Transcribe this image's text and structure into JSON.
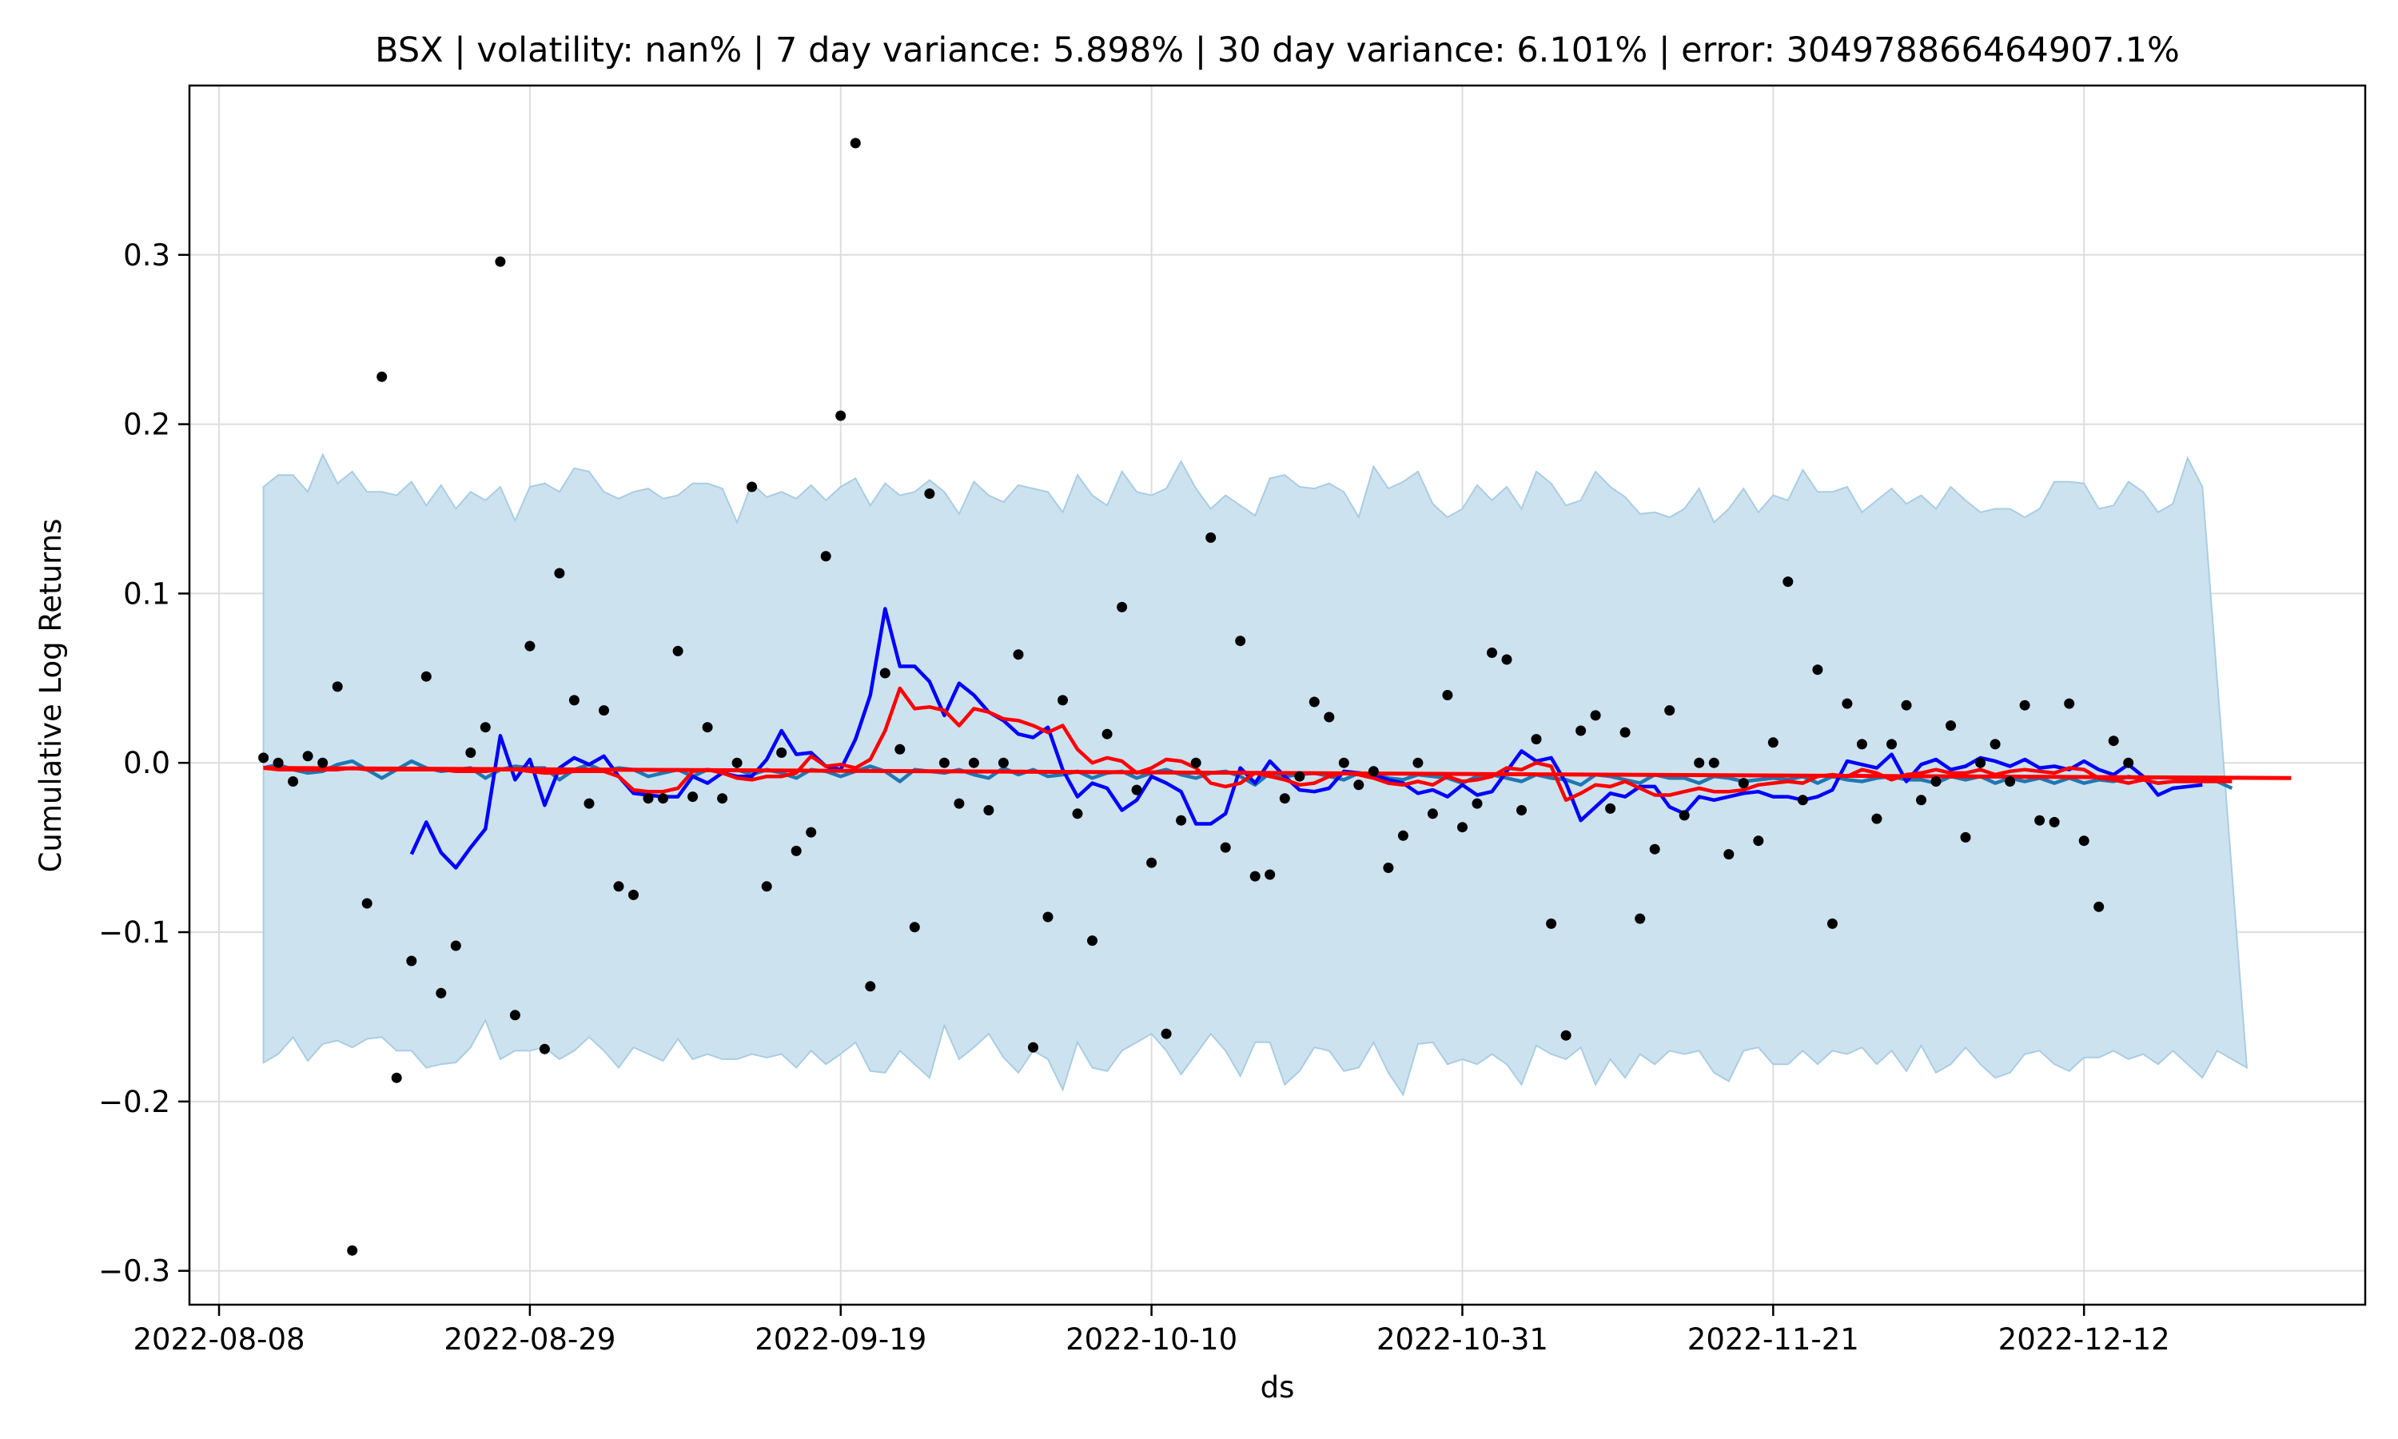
{
  "chart_data": {
    "type": "line",
    "title": "BSX | volatility: nan% | 7 day variance: 5.898% | 30 day variance: 6.101% | error: 304978866464907.1%",
    "xlabel": "ds",
    "ylabel": "Cumulative Log Returns",
    "x_start": "2022-08-11",
    "x_end": "2022-12-26",
    "xlim": [
      "2022-08-06",
      "2022-12-31"
    ],
    "ylim": [
      -0.32,
      0.4
    ],
    "grid": true,
    "x_ticks": [
      "2022-08-08",
      "2022-08-29",
      "2022-09-19",
      "2022-10-10",
      "2022-10-31",
      "2022-11-21",
      "2022-12-12"
    ],
    "y_ticks": [
      {
        "value": 0.3,
        "label": "0.3"
      },
      {
        "value": 0.2,
        "label": "0.2"
      },
      {
        "value": 0.1,
        "label": "0.1"
      },
      {
        "value": 0.0,
        "label": "0.0"
      },
      {
        "value": -0.1,
        "label": "−0.1"
      },
      {
        "value": -0.2,
        "label": "−0.2"
      },
      {
        "value": -0.3,
        "label": "−0.3"
      }
    ],
    "colors": {
      "band_fill": "#cde2ef",
      "band_edge": "#a9cde2",
      "forecast": "#1f77b4",
      "ma_short": "#0000ff",
      "ma_long": "#ff0000",
      "actual": "#000000",
      "grid": "#dddddd"
    },
    "band_upper": [
      0.163,
      0.17,
      0.17,
      0.16,
      0.182,
      0.165,
      0.172,
      0.16,
      0.16,
      0.158,
      0.166,
      0.152,
      0.164,
      0.15,
      0.16,
      0.155,
      0.163,
      0.143,
      0.163,
      0.165,
      0.16,
      0.174,
      0.172,
      0.16,
      0.156,
      0.16,
      0.162,
      0.156,
      0.158,
      0.165,
      0.165,
      0.162,
      0.142,
      0.165,
      0.157,
      0.16,
      0.156,
      0.164,
      0.155,
      0.163,
      0.168,
      0.152,
      0.165,
      0.158,
      0.16,
      0.167,
      0.16,
      0.147,
      0.166,
      0.158,
      0.154,
      0.164,
      0.162,
      0.16,
      0.148,
      0.17,
      0.158,
      0.152,
      0.172,
      0.16,
      0.158,
      0.162,
      0.178,
      0.162,
      0.15,
      0.158,
      0.152,
      0.146,
      0.168,
      0.17,
      0.163,
      0.162,
      0.165,
      0.16,
      0.145,
      0.175,
      0.162,
      0.166,
      0.172,
      0.153,
      0.145,
      0.15,
      0.164,
      0.155,
      0.163,
      0.15,
      0.172,
      0.165,
      0.152,
      0.155,
      0.172,
      0.163,
      0.157,
      0.147,
      0.148,
      0.145,
      0.15,
      0.162,
      0.142,
      0.15,
      0.162,
      0.148,
      0.158,
      0.155,
      0.173,
      0.16,
      0.16,
      0.163,
      0.148,
      0.155,
      0.162,
      0.153,
      0.158,
      0.15,
      0.163,
      0.155,
      0.148,
      0.15,
      0.15,
      0.145,
      0.15,
      0.166,
      0.166,
      0.165,
      0.15,
      0.152,
      0.166,
      0.16,
      0.148,
      0.153,
      0.18,
      0.163
    ],
    "band_lower": [
      -0.177,
      -0.172,
      -0.162,
      -0.176,
      -0.166,
      -0.164,
      -0.168,
      -0.163,
      -0.162,
      -0.17,
      -0.17,
      -0.18,
      -0.178,
      -0.177,
      -0.168,
      -0.152,
      -0.175,
      -0.17,
      -0.17,
      -0.168,
      -0.175,
      -0.17,
      -0.162,
      -0.17,
      -0.18,
      -0.168,
      -0.172,
      -0.176,
      -0.163,
      -0.175,
      -0.172,
      -0.175,
      -0.175,
      -0.172,
      -0.174,
      -0.172,
      -0.18,
      -0.17,
      -0.178,
      -0.172,
      -0.165,
      -0.182,
      -0.183,
      -0.17,
      -0.178,
      -0.186,
      -0.155,
      -0.175,
      -0.168,
      -0.16,
      -0.174,
      -0.183,
      -0.17,
      -0.175,
      -0.193,
      -0.165,
      -0.18,
      -0.182,
      -0.17,
      -0.165,
      -0.16,
      -0.17,
      -0.184,
      -0.172,
      -0.16,
      -0.17,
      -0.185,
      -0.165,
      -0.165,
      -0.19,
      -0.182,
      -0.168,
      -0.17,
      -0.182,
      -0.18,
      -0.165,
      -0.183,
      -0.196,
      -0.166,
      -0.165,
      -0.178,
      -0.175,
      -0.178,
      -0.172,
      -0.178,
      -0.19,
      -0.167,
      -0.172,
      -0.175,
      -0.168,
      -0.19,
      -0.175,
      -0.186,
      -0.172,
      -0.178,
      -0.17,
      -0.172,
      -0.17,
      -0.183,
      -0.188,
      -0.17,
      -0.168,
      -0.178,
      -0.178,
      -0.17,
      -0.178,
      -0.17,
      -0.172,
      -0.168,
      -0.178,
      -0.17,
      -0.182,
      -0.167,
      -0.183,
      -0.178,
      -0.168,
      -0.178,
      -0.186,
      -0.183,
      -0.172,
      -0.17,
      -0.178,
      -0.182,
      -0.174,
      -0.174,
      -0.17,
      -0.175,
      -0.172,
      -0.178,
      -0.17,
      -0.178,
      -0.186,
      -0.17,
      -0.175,
      -0.18
    ],
    "forecast": [
      -0.003,
      -0.001,
      -0.004,
      -0.006,
      -0.005,
      -0.001,
      0.001,
      -0.004,
      -0.009,
      -0.004,
      0.001,
      -0.003,
      -0.005,
      -0.004,
      -0.003,
      -0.009,
      -0.004,
      -0.002,
      -0.003,
      -0.003,
      -0.01,
      -0.004,
      -0.001,
      -0.005,
      -0.003,
      -0.004,
      -0.008,
      -0.006,
      -0.004,
      -0.008,
      -0.004,
      -0.005,
      -0.004,
      -0.007,
      -0.004,
      -0.006,
      -0.009,
      -0.004,
      -0.005,
      -0.008,
      -0.005,
      -0.002,
      -0.005,
      -0.011,
      -0.004,
      -0.005,
      -0.006,
      -0.004,
      -0.007,
      -0.009,
      -0.003,
      -0.007,
      -0.004,
      -0.008,
      -0.007,
      -0.005,
      -0.009,
      -0.006,
      -0.005,
      -0.009,
      -0.006,
      -0.004,
      -0.007,
      -0.009,
      -0.006,
      -0.005,
      -0.008,
      -0.013,
      -0.006,
      -0.008,
      -0.007,
      -0.006,
      -0.008,
      -0.01,
      -0.006,
      -0.007,
      -0.009,
      -0.01,
      -0.007,
      -0.008,
      -0.009,
      -0.012,
      -0.008,
      -0.007,
      -0.009,
      -0.011,
      -0.007,
      -0.009,
      -0.01,
      -0.013,
      -0.007,
      -0.008,
      -0.01,
      -0.012,
      -0.007,
      -0.009,
      -0.009,
      -0.012,
      -0.008,
      -0.009,
      -0.011,
      -0.01,
      -0.009,
      -0.01,
      -0.008,
      -0.012,
      -0.008,
      -0.01,
      -0.011,
      -0.009,
      -0.008,
      -0.01,
      -0.01,
      -0.012,
      -0.008,
      -0.01,
      -0.008,
      -0.012,
      -0.009,
      -0.011,
      -0.009,
      -0.012,
      -0.009,
      -0.012,
      -0.01,
      -0.011,
      -0.008,
      -0.01,
      -0.012,
      -0.011,
      -0.01,
      -0.009,
      -0.011,
      -0.015
    ],
    "ma_short": [
      null,
      null,
      null,
      null,
      null,
      null,
      null,
      null,
      null,
      null,
      -0.054,
      -0.035,
      -0.053,
      -0.062,
      -0.05,
      -0.039,
      0.016,
      -0.01,
      0.002,
      -0.025,
      -0.003,
      0.003,
      -0.001,
      0.004,
      -0.008,
      -0.018,
      -0.019,
      -0.02,
      -0.02,
      -0.008,
      -0.012,
      -0.006,
      -0.008,
      -0.008,
      0.002,
      0.019,
      0.005,
      0.006,
      -0.002,
      -0.004,
      0.014,
      0.04,
      0.091,
      0.057,
      0.057,
      0.048,
      0.028,
      0.047,
      0.04,
      0.03,
      0.025,
      0.017,
      0.015,
      0.021,
      -0.004,
      -0.02,
      -0.012,
      -0.015,
      -0.028,
      -0.022,
      -0.008,
      -0.012,
      -0.017,
      -0.036,
      -0.036,
      -0.03,
      -0.003,
      -0.012,
      0.001,
      -0.008,
      -0.016,
      -0.017,
      -0.015,
      -0.005,
      -0.006,
      -0.007,
      -0.01,
      -0.012,
      -0.018,
      -0.016,
      -0.02,
      -0.013,
      -0.019,
      -0.017,
      -0.005,
      0.007,
      0.001,
      0.003,
      -0.012,
      -0.034,
      -0.026,
      -0.018,
      -0.02,
      -0.014,
      -0.014,
      -0.026,
      -0.03,
      -0.02,
      -0.022,
      -0.02,
      -0.018,
      -0.017,
      -0.02,
      -0.02,
      -0.022,
      -0.02,
      -0.016,
      0.001,
      -0.001,
      -0.003,
      0.005,
      -0.011,
      -0.001,
      0.002,
      -0.004,
      -0.002,
      0.003,
      0.001,
      -0.002,
      0.002,
      -0.003,
      -0.002,
      -0.004,
      0.001,
      -0.004,
      -0.007,
      -0.001,
      -0.008,
      -0.019,
      -0.015,
      -0.014,
      -0.013
    ],
    "ma_long": [
      -0.003,
      -0.004,
      -0.004,
      -0.004,
      -0.004,
      -0.004,
      -0.003,
      -0.004,
      -0.004,
      -0.004,
      -0.004,
      -0.004,
      -0.004,
      -0.005,
      -0.005,
      -0.005,
      -0.004,
      -0.004,
      -0.005,
      -0.006,
      -0.006,
      -0.005,
      -0.005,
      -0.005,
      -0.008,
      -0.016,
      -0.017,
      -0.017,
      -0.015,
      -0.005,
      -0.004,
      -0.006,
      -0.009,
      -0.01,
      -0.008,
      -0.008,
      -0.006,
      0.004,
      -0.002,
      -0.001,
      -0.003,
      0.002,
      0.019,
      0.044,
      0.032,
      0.033,
      0.031,
      0.022,
      0.032,
      0.03,
      0.026,
      0.025,
      0.022,
      0.018,
      0.022,
      0.008,
      0.0,
      0.003,
      0.001,
      -0.006,
      -0.003,
      0.002,
      0.001,
      -0.003,
      -0.012,
      -0.014,
      -0.012,
      -0.006,
      -0.008,
      -0.01,
      -0.013,
      -0.012,
      -0.008,
      -0.006,
      -0.007,
      -0.009,
      -0.012,
      -0.013,
      -0.011,
      -0.013,
      -0.008,
      -0.011,
      -0.01,
      -0.008,
      -0.003,
      -0.004,
      0.0,
      -0.002,
      -0.022,
      -0.018,
      -0.013,
      -0.014,
      -0.011,
      -0.015,
      -0.019,
      -0.019,
      -0.017,
      -0.015,
      -0.017,
      -0.017,
      -0.016,
      -0.013,
      -0.012,
      -0.011,
      -0.012,
      -0.008,
      -0.007,
      -0.008,
      -0.004,
      -0.006,
      -0.01,
      -0.007,
      -0.006,
      -0.004,
      -0.006,
      -0.006,
      -0.004,
      -0.007,
      -0.005,
      -0.004,
      -0.005,
      -0.006,
      -0.003,
      -0.004,
      -0.009,
      -0.01,
      -0.012,
      -0.01,
      -0.012,
      -0.011,
      -0.011,
      -0.011,
      -0.011,
      -0.011
    ],
    "trend": {
      "start": -0.003,
      "end": -0.009
    },
    "actual": [
      [
        "2022-08-11",
        0.003
      ],
      [
        "2022-08-12",
        0.0
      ],
      [
        "2022-08-13",
        -0.011
      ],
      [
        "2022-08-14",
        0.004
      ],
      [
        "2022-08-15",
        0.0
      ],
      [
        "2022-08-16",
        0.045
      ],
      [
        "2022-08-17",
        -0.288
      ],
      [
        "2022-08-18",
        -0.083
      ],
      [
        "2022-08-19",
        0.228
      ],
      [
        "2022-08-20",
        -0.186
      ],
      [
        "2022-08-21",
        -0.117
      ],
      [
        "2022-08-22",
        0.051
      ],
      [
        "2022-08-23",
        -0.136
      ],
      [
        "2022-08-24",
        -0.108
      ],
      [
        "2022-08-25",
        0.006
      ],
      [
        "2022-08-26",
        0.021
      ],
      [
        "2022-08-27",
        0.296
      ],
      [
        "2022-08-28",
        -0.149
      ],
      [
        "2022-08-29",
        0.069
      ],
      [
        "2022-08-30",
        -0.169
      ],
      [
        "2022-08-31",
        0.112
      ],
      [
        "2022-09-01",
        0.037
      ],
      [
        "2022-09-02",
        -0.024
      ],
      [
        "2022-09-03",
        0.031
      ],
      [
        "2022-09-04",
        -0.073
      ],
      [
        "2022-09-05",
        -0.078
      ],
      [
        "2022-09-06",
        -0.021
      ],
      [
        "2022-09-07",
        -0.021
      ],
      [
        "2022-09-08",
        0.066
      ],
      [
        "2022-09-09",
        -0.02
      ],
      [
        "2022-09-10",
        0.021
      ],
      [
        "2022-09-11",
        -0.021
      ],
      [
        "2022-09-12",
        0.0
      ],
      [
        "2022-09-13",
        0.163
      ],
      [
        "2022-09-14",
        -0.073
      ],
      [
        "2022-09-15",
        0.006
      ],
      [
        "2022-09-16",
        -0.052
      ],
      [
        "2022-09-17",
        -0.041
      ],
      [
        "2022-09-18",
        0.122
      ],
      [
        "2022-09-19",
        0.205
      ],
      [
        "2022-09-20",
        0.366
      ],
      [
        "2022-09-21",
        -0.132
      ],
      [
        "2022-09-22",
        0.053
      ],
      [
        "2022-09-23",
        0.008
      ],
      [
        "2022-09-24",
        -0.097
      ],
      [
        "2022-09-25",
        0.159
      ],
      [
        "2022-09-26",
        0.0
      ],
      [
        "2022-09-27",
        -0.024
      ],
      [
        "2022-09-28",
        0.0
      ],
      [
        "2022-09-29",
        -0.028
      ],
      [
        "2022-09-30",
        0.0
      ],
      [
        "2022-10-01",
        0.064
      ],
      [
        "2022-10-02",
        -0.168
      ],
      [
        "2022-10-03",
        -0.091
      ],
      [
        "2022-10-04",
        0.037
      ],
      [
        "2022-10-05",
        -0.03
      ],
      [
        "2022-10-06",
        -0.105
      ],
      [
        "2022-10-07",
        0.017
      ],
      [
        "2022-10-08",
        0.092
      ],
      [
        "2022-10-09",
        -0.016
      ],
      [
        "2022-10-10",
        -0.059
      ],
      [
        "2022-10-11",
        -0.16
      ],
      [
        "2022-10-12",
        -0.034
      ],
      [
        "2022-10-13",
        0.0
      ],
      [
        "2022-10-14",
        0.133
      ],
      [
        "2022-10-15",
        -0.05
      ],
      [
        "2022-10-16",
        0.072
      ],
      [
        "2022-10-17",
        -0.067
      ],
      [
        "2022-10-18",
        -0.066
      ],
      [
        "2022-10-19",
        -0.021
      ],
      [
        "2022-10-20",
        -0.008
      ],
      [
        "2022-10-21",
        0.036
      ],
      [
        "2022-10-22",
        0.027
      ],
      [
        "2022-10-23",
        0.0
      ],
      [
        "2022-10-24",
        -0.013
      ],
      [
        "2022-10-25",
        -0.005
      ],
      [
        "2022-10-26",
        -0.062
      ],
      [
        "2022-10-27",
        -0.043
      ],
      [
        "2022-10-28",
        0.0
      ],
      [
        "2022-10-29",
        -0.03
      ],
      [
        "2022-10-30",
        0.04
      ],
      [
        "2022-10-31",
        -0.038
      ],
      [
        "2022-11-01",
        -0.024
      ],
      [
        "2022-11-02",
        0.065
      ],
      [
        "2022-11-03",
        0.061
      ],
      [
        "2022-11-04",
        -0.028
      ],
      [
        "2022-11-05",
        0.014
      ],
      [
        "2022-11-06",
        -0.095
      ],
      [
        "2022-11-07",
        -0.161
      ],
      [
        "2022-11-08",
        0.019
      ],
      [
        "2022-11-09",
        0.028
      ],
      [
        "2022-11-10",
        -0.027
      ],
      [
        "2022-11-11",
        0.018
      ],
      [
        "2022-11-12",
        -0.092
      ],
      [
        "2022-11-13",
        -0.051
      ],
      [
        "2022-11-14",
        0.031
      ],
      [
        "2022-11-15",
        -0.031
      ],
      [
        "2022-11-16",
        0.0
      ],
      [
        "2022-11-17",
        0.0
      ],
      [
        "2022-11-18",
        -0.054
      ],
      [
        "2022-11-19",
        -0.012
      ],
      [
        "2022-11-20",
        -0.046
      ],
      [
        "2022-11-21",
        0.012
      ],
      [
        "2022-11-22",
        0.107
      ],
      [
        "2022-11-23",
        -0.022
      ],
      [
        "2022-11-24",
        0.055
      ],
      [
        "2022-11-25",
        -0.095
      ],
      [
        "2022-11-26",
        0.035
      ],
      [
        "2022-11-27",
        0.011
      ],
      [
        "2022-11-28",
        -0.033
      ],
      [
        "2022-11-29",
        0.011
      ],
      [
        "2022-11-30",
        0.034
      ],
      [
        "2022-12-01",
        -0.022
      ],
      [
        "2022-12-02",
        -0.011
      ],
      [
        "2022-12-03",
        0.022
      ],
      [
        "2022-12-04",
        -0.044
      ],
      [
        "2022-12-05",
        0.0
      ],
      [
        "2022-12-06",
        0.011
      ],
      [
        "2022-12-07",
        -0.011
      ],
      [
        "2022-12-08",
        0.034
      ],
      [
        "2022-12-09",
        -0.034
      ],
      [
        "2022-12-10",
        -0.035
      ],
      [
        "2022-12-11",
        0.035
      ],
      [
        "2022-12-12",
        -0.046
      ],
      [
        "2022-12-13",
        -0.085
      ],
      [
        "2022-12-14",
        0.013
      ],
      [
        "2022-12-15",
        0.0
      ]
    ]
  }
}
